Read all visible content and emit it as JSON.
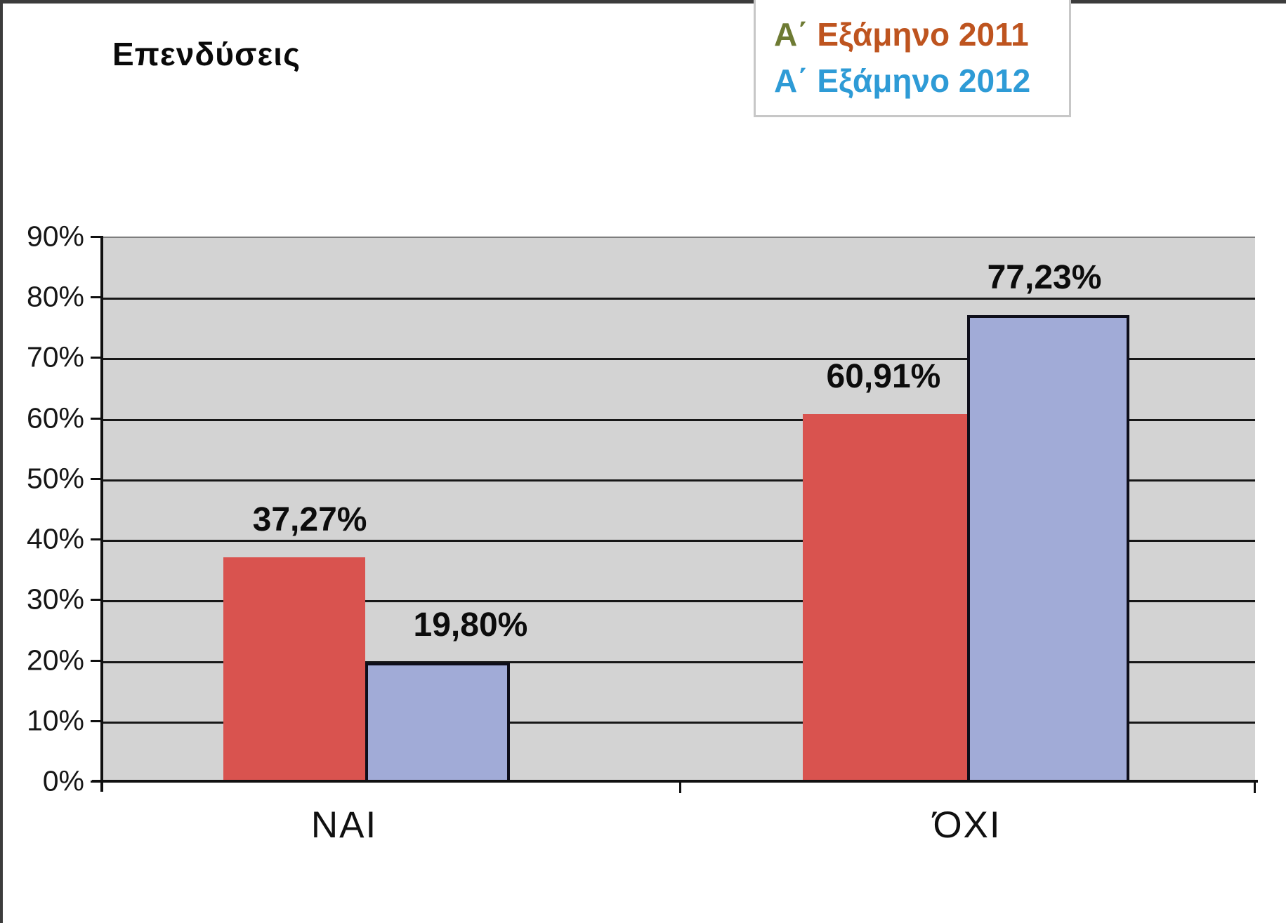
{
  "title": "Επενδύσεις",
  "legend": {
    "items": [
      {
        "prefix": "Α΄ ",
        "label": "Εξάμηνο 2011",
        "prefix_color": "#6E7B34",
        "label_color": "#BE541F"
      },
      {
        "prefix": "Α΄ ",
        "label": "Εξάμηνο 2012",
        "prefix_color": "#2E9BD6",
        "label_color": "#2E9BD6"
      }
    ]
  },
  "chart_data": {
    "type": "bar",
    "title": "Επενδύσεις",
    "categories": [
      "ΝΑΙ",
      "ΌΧΙ"
    ],
    "series": [
      {
        "name": "Α΄ Εξάμηνο 2011",
        "color": "#D9534F",
        "values": [
          37.27,
          60.91
        ],
        "labels": [
          "37,27%",
          "60,91%"
        ]
      },
      {
        "name": "Α΄ Εξάμηνο 2012",
        "color": "#A1ABD7",
        "values": [
          19.8,
          77.23
        ],
        "labels": [
          "19,80%",
          "77,23%"
        ]
      }
    ],
    "ylim": [
      0,
      90
    ],
    "yticks": [
      "90%",
      "80%",
      "70%",
      "60%",
      "50%",
      "40%",
      "30%",
      "20%",
      "10%",
      "0%"
    ],
    "grid": true,
    "legend_position": "top-right",
    "plot_background": "#D3D3D3"
  }
}
